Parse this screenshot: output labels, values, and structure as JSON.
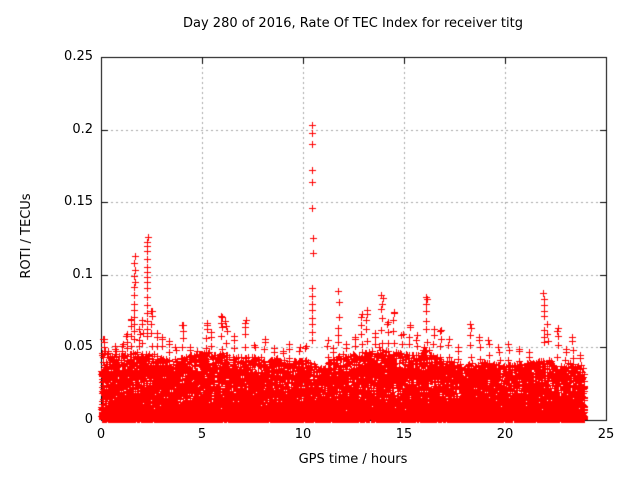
{
  "chart_data": {
    "type": "scatter",
    "title": "Day 280 of 2016, Rate Of TEC Index for receiver titg",
    "xlabel": "GPS time / hours",
    "ylabel": "ROTI / TECUs",
    "xlim": [
      0,
      25
    ],
    "ylim": [
      0,
      0.25
    ],
    "xticks": [
      0,
      5,
      10,
      15,
      20,
      25
    ],
    "xtick_labels": [
      "0",
      "5",
      "10",
      "15",
      "20",
      "25"
    ],
    "yticks": [
      0,
      0.05,
      0.1,
      0.15,
      0.2,
      0.25
    ],
    "ytick_labels": [
      "0",
      "0.05",
      "0.1",
      "0.15",
      "0.2",
      "0.25"
    ],
    "grid": true,
    "legend": "none",
    "marker": "plus",
    "marker_size_px": 7,
    "marker_color": "#ff0000",
    "grid_color": "#a8a8a8",
    "axis_color": "#000000",
    "background_color": "#ffffff",
    "max_point": {
      "time_hours": 10.45,
      "value_tecus": 0.203
    },
    "seed": 1337,
    "baseline": {
      "n_points": 11000,
      "span_hours": [
        0.02,
        23.93
      ],
      "y_min": 0.0008,
      "shape": 2.4,
      "envelope_by_hour": [
        0.048,
        0.046,
        0.047,
        0.044,
        0.043,
        0.047,
        0.046,
        0.044,
        0.043,
        0.043,
        0.041,
        0.038,
        0.046,
        0.048,
        0.048,
        0.046,
        0.047,
        0.042,
        0.038,
        0.04,
        0.038,
        0.039,
        0.042,
        0.04,
        0.038
      ]
    },
    "trees": [
      [
        0.12,
        0.056,
        8
      ],
      [
        0.35,
        0.048,
        5
      ],
      [
        0.7,
        0.05,
        6
      ],
      [
        1.05,
        0.052,
        6
      ],
      [
        1.3,
        0.06,
        6
      ],
      [
        1.5,
        0.07,
        7
      ],
      [
        1.9,
        0.062,
        6
      ],
      [
        2.05,
        0.068,
        6
      ],
      [
        2.5,
        0.076,
        8
      ],
      [
        2.75,
        0.06,
        5
      ],
      [
        3.0,
        0.058,
        5
      ],
      [
        3.35,
        0.054,
        5
      ],
      [
        3.7,
        0.05,
        4
      ],
      [
        4.05,
        0.066,
        7
      ],
      [
        4.4,
        0.05,
        4
      ],
      [
        4.75,
        0.048,
        4
      ],
      [
        5.2,
        0.067,
        7
      ],
      [
        5.45,
        0.06,
        5
      ],
      [
        5.95,
        0.072,
        8
      ],
      [
        6.2,
        0.068,
        6
      ],
      [
        6.6,
        0.058,
        5
      ],
      [
        7.15,
        0.069,
        7
      ],
      [
        7.6,
        0.052,
        4
      ],
      [
        8.1,
        0.056,
        5
      ],
      [
        8.55,
        0.05,
        4
      ],
      [
        9.0,
        0.048,
        4
      ],
      [
        9.35,
        0.053,
        4
      ],
      [
        9.8,
        0.05,
        4
      ],
      [
        10.15,
        0.052,
        4
      ],
      [
        11.2,
        0.055,
        4
      ],
      [
        11.5,
        0.05,
        4
      ],
      [
        12.1,
        0.052,
        4
      ],
      [
        12.55,
        0.058,
        5
      ],
      [
        12.9,
        0.072,
        7
      ],
      [
        13.15,
        0.075,
        7
      ],
      [
        13.55,
        0.06,
        5
      ],
      [
        13.9,
        0.086,
        9
      ],
      [
        14.2,
        0.068,
        6
      ],
      [
        14.5,
        0.075,
        7
      ],
      [
        14.9,
        0.06,
        5
      ],
      [
        15.25,
        0.065,
        6
      ],
      [
        15.6,
        0.058,
        5
      ],
      [
        16.1,
        0.085,
        9
      ],
      [
        16.45,
        0.062,
        5
      ],
      [
        16.8,
        0.063,
        6
      ],
      [
        17.2,
        0.055,
        4
      ],
      [
        17.7,
        0.05,
        4
      ],
      [
        18.3,
        0.066,
        6
      ],
      [
        18.75,
        0.058,
        5
      ],
      [
        19.2,
        0.055,
        4
      ],
      [
        19.7,
        0.05,
        4
      ],
      [
        20.2,
        0.052,
        4
      ],
      [
        20.7,
        0.05,
        4
      ],
      [
        21.2,
        0.048,
        3
      ],
      [
        22.6,
        0.064,
        6
      ],
      [
        23.0,
        0.05,
        4
      ],
      [
        23.35,
        0.056,
        5
      ],
      [
        23.7,
        0.046,
        3
      ]
    ],
    "spikes": [
      {
        "time_hours": 1.64,
        "values": [
          0.113,
          0.108,
          0.1035,
          0.099,
          0.0952,
          0.0915,
          0.086,
          0.08,
          0.0755,
          0.071,
          0.066,
          0.061,
          0.056
        ]
      },
      {
        "time_hours": 2.28,
        "values": [
          0.126,
          0.1225,
          0.1195,
          0.1165,
          0.111,
          0.1055,
          0.102,
          0.0985,
          0.0952,
          0.091,
          0.0845,
          0.079,
          0.0735,
          0.068,
          0.0625,
          0.058
        ]
      },
      {
        "time_hours": 10.45,
        "values": [
          0.2034,
          0.1975,
          0.1902,
          0.172,
          0.1638,
          0.1458,
          0.1252,
          0.1148,
          0.091,
          0.0853,
          0.0802,
          0.0756,
          0.0702,
          0.0658,
          0.0605,
          0.0553
        ]
      },
      {
        "time_hours": 11.76,
        "values": [
          0.0888,
          0.0813,
          0.0709,
          0.0633,
          0.0582,
          0.054
        ]
      },
      {
        "time_hours": 21.93,
        "values": [
          0.0872,
          0.0832,
          0.0793,
          0.0752,
          0.0713,
          0.0622,
          0.0573,
          0.0538
        ]
      },
      {
        "time_hours": 22.1,
        "values": [
          0.066,
          0.059,
          0.0545
        ]
      }
    ]
  }
}
